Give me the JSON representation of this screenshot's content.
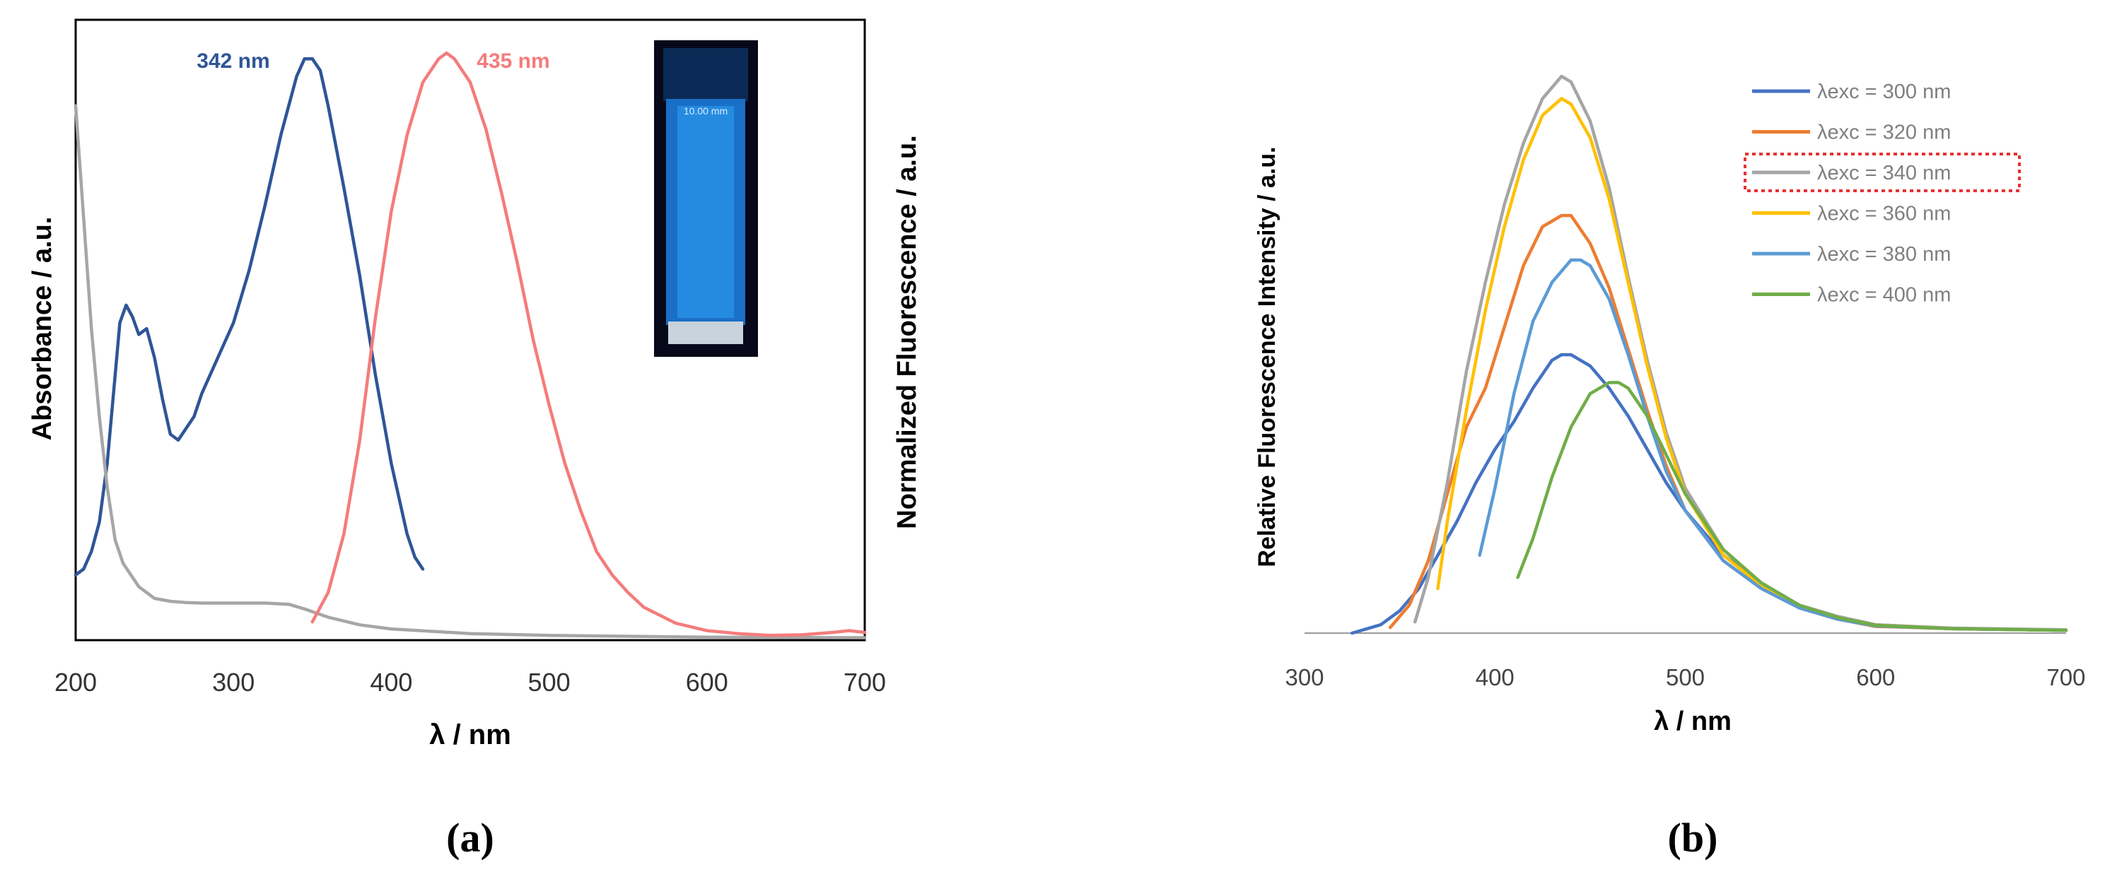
{
  "panels": {
    "a": {
      "label": "(a)"
    },
    "b": {
      "label": "(b)"
    }
  },
  "colors": {
    "absorbance": "#2f5597",
    "absorbance_solvent": "#a6a6a6",
    "fluorescence": "#f47c7c",
    "ex300": "#4472c4",
    "ex320": "#ed7d31",
    "ex340": "#a5a5a5",
    "ex360": "#ffc000",
    "ex380": "#5b9bd5",
    "ex400": "#70ad47",
    "highlight_box": "#e83030",
    "inset_bg": "#07091a",
    "inset_glow": "#1e8fe8"
  },
  "chart_data": [
    {
      "type": "line",
      "panel": "a",
      "xlabel": "λ / nm",
      "ylabel_left": "Absorbance / a.u.",
      "ylabel_right": "Normalized Fluorescence / a.u.",
      "xlim": [
        200,
        700
      ],
      "ylim": [
        0,
        1
      ],
      "xticks": [
        "200",
        "300",
        "400",
        "500",
        "600",
        "700"
      ],
      "annotations": [
        {
          "text": "342 nm",
          "series": "absorbance"
        },
        {
          "text": "435 nm",
          "series": "fluorescence"
        }
      ],
      "inset": {
        "description_text": "",
        "cuvette_label": "10.00 mm"
      },
      "series": [
        {
          "key": "absorbance",
          "x": [
            200,
            205,
            210,
            215,
            220,
            225,
            228,
            232,
            236,
            240,
            245,
            250,
            255,
            260,
            265,
            270,
            275,
            280,
            290,
            300,
            310,
            320,
            330,
            340,
            345,
            350,
            355,
            360,
            370,
            380,
            390,
            400,
            410,
            415,
            420
          ],
          "y": [
            0.11,
            0.12,
            0.15,
            0.2,
            0.3,
            0.45,
            0.54,
            0.57,
            0.55,
            0.52,
            0.53,
            0.48,
            0.41,
            0.35,
            0.34,
            0.36,
            0.38,
            0.42,
            0.48,
            0.54,
            0.63,
            0.74,
            0.86,
            0.96,
            0.99,
            0.99,
            0.97,
            0.91,
            0.77,
            0.62,
            0.45,
            0.3,
            0.18,
            0.14,
            0.12
          ]
        },
        {
          "key": "absorbance_solvent",
          "x": [
            200,
            205,
            210,
            215,
            220,
            225,
            230,
            240,
            250,
            260,
            270,
            280,
            300,
            320,
            335,
            345,
            360,
            380,
            400,
            450,
            500,
            600,
            700
          ],
          "y": [
            0.91,
            0.72,
            0.53,
            0.38,
            0.26,
            0.17,
            0.13,
            0.09,
            0.07,
            0.065,
            0.063,
            0.062,
            0.062,
            0.062,
            0.06,
            0.052,
            0.038,
            0.025,
            0.018,
            0.01,
            0.007,
            0.004,
            0.003
          ]
        },
        {
          "key": "fluorescence",
          "x": [
            350,
            360,
            370,
            380,
            390,
            400,
            410,
            420,
            430,
            435,
            440,
            450,
            460,
            470,
            480,
            490,
            500,
            510,
            520,
            530,
            540,
            550,
            560,
            580,
            600,
            620,
            640,
            660,
            680,
            690,
            700
          ],
          "y": [
            0.03,
            0.08,
            0.18,
            0.34,
            0.55,
            0.73,
            0.86,
            0.95,
            0.99,
            1.0,
            0.99,
            0.95,
            0.87,
            0.76,
            0.64,
            0.51,
            0.4,
            0.3,
            0.22,
            0.15,
            0.11,
            0.08,
            0.055,
            0.028,
            0.015,
            0.01,
            0.007,
            0.008,
            0.012,
            0.015,
            0.012
          ]
        }
      ]
    },
    {
      "type": "line",
      "panel": "b",
      "xlabel": "λ / nm",
      "ylabel": "Relative Fluorescence Intensity / a.u.",
      "xlim": [
        300,
        700
      ],
      "ylim": [
        0,
        1
      ],
      "xticks": [
        "300",
        "400",
        "500",
        "600",
        "700"
      ],
      "legend_position": "top-right",
      "highlighted_series": "λexc = 340 nm",
      "series": [
        {
          "name": "λexc = 300 nm",
          "color_key": "ex300",
          "x": [
            325,
            340,
            350,
            360,
            370,
            380,
            390,
            400,
            410,
            420,
            430,
            435,
            440,
            450,
            460,
            470,
            480,
            490,
            500,
            520,
            540,
            560,
            580,
            600,
            640,
            700
          ],
          "y": [
            0.0,
            0.015,
            0.04,
            0.08,
            0.14,
            0.2,
            0.27,
            0.33,
            0.38,
            0.44,
            0.49,
            0.5,
            0.5,
            0.48,
            0.44,
            0.39,
            0.33,
            0.27,
            0.22,
            0.14,
            0.09,
            0.05,
            0.03,
            0.015,
            0.008,
            0.005
          ]
        },
        {
          "name": "λexc = 320 nm",
          "color_key": "ex320",
          "x": [
            345,
            355,
            365,
            375,
            385,
            395,
            405,
            415,
            425,
            435,
            440,
            450,
            460,
            470,
            480,
            490,
            500,
            520,
            540,
            560,
            580,
            600,
            640,
            700
          ],
          "y": [
            0.01,
            0.05,
            0.13,
            0.25,
            0.37,
            0.44,
            0.55,
            0.66,
            0.73,
            0.75,
            0.75,
            0.7,
            0.62,
            0.51,
            0.4,
            0.3,
            0.22,
            0.13,
            0.08,
            0.045,
            0.025,
            0.012,
            0.008,
            0.005
          ]
        },
        {
          "name": "λexc = 340 nm",
          "color_key": "ex340",
          "x": [
            358,
            365,
            375,
            385,
            395,
            405,
            415,
            425,
            435,
            440,
            450,
            460,
            470,
            480,
            490,
            500,
            520,
            540,
            560,
            580,
            600,
            640,
            700
          ],
          "y": [
            0.02,
            0.1,
            0.27,
            0.47,
            0.63,
            0.77,
            0.88,
            0.96,
            1.0,
            0.99,
            0.92,
            0.8,
            0.64,
            0.49,
            0.36,
            0.26,
            0.15,
            0.09,
            0.05,
            0.03,
            0.015,
            0.009,
            0.006
          ]
        },
        {
          "name": "λexc = 360 nm",
          "color_key": "ex360",
          "x": [
            370,
            375,
            385,
            395,
            405,
            415,
            425,
            435,
            440,
            450,
            460,
            470,
            480,
            490,
            500,
            520,
            540,
            560,
            580,
            600,
            640,
            700
          ],
          "y": [
            0.08,
            0.2,
            0.4,
            0.58,
            0.73,
            0.85,
            0.93,
            0.96,
            0.95,
            0.89,
            0.78,
            0.63,
            0.48,
            0.35,
            0.25,
            0.14,
            0.085,
            0.05,
            0.028,
            0.014,
            0.008,
            0.005
          ]
        },
        {
          "name": "λexc = 380 nm",
          "color_key": "ex380",
          "x": [
            392,
            400,
            410,
            420,
            430,
            440,
            445,
            450,
            460,
            470,
            480,
            490,
            500,
            520,
            540,
            560,
            580,
            600,
            640,
            700
          ],
          "y": [
            0.14,
            0.26,
            0.43,
            0.56,
            0.63,
            0.67,
            0.67,
            0.66,
            0.6,
            0.5,
            0.39,
            0.29,
            0.22,
            0.13,
            0.08,
            0.045,
            0.025,
            0.013,
            0.008,
            0.005
          ]
        },
        {
          "name": "λexc = 400 nm",
          "color_key": "ex400",
          "x": [
            412,
            420,
            430,
            440,
            450,
            460,
            465,
            470,
            480,
            490,
            500,
            520,
            540,
            560,
            580,
            600,
            640,
            700
          ],
          "y": [
            0.1,
            0.17,
            0.28,
            0.37,
            0.43,
            0.45,
            0.45,
            0.44,
            0.39,
            0.32,
            0.25,
            0.15,
            0.09,
            0.05,
            0.028,
            0.014,
            0.008,
            0.005
          ]
        }
      ]
    }
  ]
}
